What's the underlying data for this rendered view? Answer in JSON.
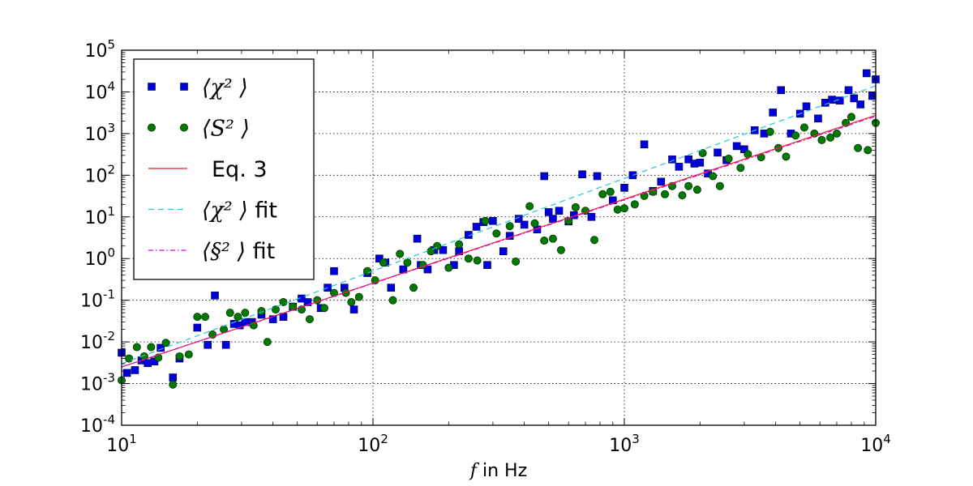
{
  "chart_data": {
    "type": "scatter",
    "xscale": "log",
    "yscale": "log",
    "xlim": [
      10,
      10000
    ],
    "ylim": [
      0.0001,
      100000
    ],
    "xlabel": {
      "math": "f",
      "text": " in Hz"
    },
    "grid": true,
    "legend_position": "top-left",
    "x_ticks": [
      {
        "base": "10",
        "exp": "1"
      },
      {
        "base": "10",
        "exp": "2"
      },
      {
        "base": "10",
        "exp": "3"
      },
      {
        "base": "10",
        "exp": "4"
      }
    ],
    "y_ticks": [
      {
        "base": "10",
        "exp": "-4"
      },
      {
        "base": "10",
        "exp": "-3"
      },
      {
        "base": "10",
        "exp": "-2"
      },
      {
        "base": "10",
        "exp": "-1"
      },
      {
        "base": "10",
        "exp": "0"
      },
      {
        "base": "10",
        "exp": "1"
      },
      {
        "base": "10",
        "exp": "2"
      },
      {
        "base": "10",
        "exp": "3"
      },
      {
        "base": "10",
        "exp": "4"
      },
      {
        "base": "10",
        "exp": "5"
      }
    ],
    "legend": [
      {
        "id": "chi2",
        "label": "⟨χ² ⟩",
        "suffix": ""
      },
      {
        "id": "s2",
        "label": "⟨S² ⟩",
        "suffix": ""
      },
      {
        "id": "eq3",
        "label": "",
        "suffix": "Eq. 3"
      },
      {
        "id": "chi2fit",
        "label": "⟨χ² ⟩",
        "suffix": " fit"
      },
      {
        "id": "s2fit",
        "label": "⟨§² ⟩",
        "suffix": " fit"
      }
    ],
    "series": [
      {
        "id": "chi2",
        "kind": "markers",
        "marker": "square",
        "color": "#0000dd",
        "edge": "#000044",
        "points": [
          [
            10,
            0.0055
          ],
          [
            10.5,
            0.0018
          ],
          [
            11.3,
            0.0021
          ],
          [
            12,
            0.0036
          ],
          [
            12.7,
            0.0031
          ],
          [
            13.5,
            0.0034
          ],
          [
            14.3,
            0.0072
          ],
          [
            16,
            0.0014
          ],
          [
            17,
            0.004
          ],
          [
            20,
            0.022
          ],
          [
            22,
            0.0085
          ],
          [
            23.5,
            0.13
          ],
          [
            26,
            0.0085
          ],
          [
            28,
            0.027
          ],
          [
            29.5,
            0.025
          ],
          [
            31,
            0.03
          ],
          [
            33,
            0.03
          ],
          [
            36,
            0.045
          ],
          [
            40,
            0.035
          ],
          [
            44,
            0.04
          ],
          [
            48,
            0.07
          ],
          [
            52,
            0.11
          ],
          [
            55,
            0.09
          ],
          [
            62,
            0.065
          ],
          [
            66,
            0.2
          ],
          [
            70,
            0.5
          ],
          [
            77,
            0.2
          ],
          [
            84,
            0.06
          ],
          [
            95,
            0.45
          ],
          [
            106,
            1.0
          ],
          [
            112,
            0.8
          ],
          [
            118,
            0.2
          ],
          [
            132,
            0.55
          ],
          [
            150,
            3.0
          ],
          [
            155,
            0.7
          ],
          [
            165,
            0.55
          ],
          [
            175,
            1.6
          ],
          [
            190,
            1.6
          ],
          [
            210,
            0.7
          ],
          [
            220,
            1.5
          ],
          [
            240,
            3.7
          ],
          [
            258,
            5.8
          ],
          [
            275,
            7.5
          ],
          [
            285,
            0.7
          ],
          [
            300,
            8.0
          ],
          [
            330,
            1.5
          ],
          [
            350,
            3.5
          ],
          [
            380,
            9.0
          ],
          [
            400,
            6.5
          ],
          [
            450,
            5.0
          ],
          [
            480,
            95
          ],
          [
            500,
            13
          ],
          [
            520,
            9.0
          ],
          [
            550,
            14
          ],
          [
            600,
            7.8
          ],
          [
            630,
            11
          ],
          [
            680,
            105
          ],
          [
            740,
            10
          ],
          [
            780,
            95
          ],
          [
            900,
            25
          ],
          [
            1000,
            50
          ],
          [
            1080,
            100
          ],
          [
            1200,
            550
          ],
          [
            1300,
            42
          ],
          [
            1400,
            70
          ],
          [
            1550,
            240
          ],
          [
            1650,
            160
          ],
          [
            1800,
            240
          ],
          [
            1900,
            190
          ],
          [
            2000,
            200
          ],
          [
            2150,
            110
          ],
          [
            2350,
            350
          ],
          [
            2550,
            230
          ],
          [
            2800,
            500
          ],
          [
            3000,
            420
          ],
          [
            3300,
            1200
          ],
          [
            3600,
            1000
          ],
          [
            3900,
            3200
          ],
          [
            4200,
            11000
          ],
          [
            4600,
            1000
          ],
          [
            5000,
            3000
          ],
          [
            5300,
            4500
          ],
          [
            5900,
            2300
          ],
          [
            6300,
            5500
          ],
          [
            6700,
            6500
          ],
          [
            7200,
            6200
          ],
          [
            7800,
            11000
          ],
          [
            8200,
            7000
          ],
          [
            8700,
            5000
          ],
          [
            9200,
            28000
          ],
          [
            9700,
            8000
          ],
          [
            10000,
            20000
          ]
        ]
      },
      {
        "id": "s2",
        "kind": "markers",
        "marker": "circle",
        "color": "#007a00",
        "edge": "#003300",
        "points": [
          [
            10,
            0.0012
          ],
          [
            10.7,
            0.004
          ],
          [
            11.5,
            0.0075
          ],
          [
            12.3,
            0.0045
          ],
          [
            13.1,
            0.0075
          ],
          [
            14,
            0.0042
          ],
          [
            15,
            0.0095
          ],
          [
            16,
            0.00095
          ],
          [
            17,
            0.0045
          ],
          [
            18.5,
            0.005
          ],
          [
            20,
            0.04
          ],
          [
            21.5,
            0.04
          ],
          [
            23,
            0.015
          ],
          [
            25.5,
            0.02
          ],
          [
            27,
            0.05
          ],
          [
            29,
            0.04
          ],
          [
            31,
            0.05
          ],
          [
            33.5,
            0.025
          ],
          [
            36,
            0.055
          ],
          [
            38,
            0.01
          ],
          [
            41,
            0.06
          ],
          [
            44,
            0.09
          ],
          [
            48,
            0.07
          ],
          [
            52,
            0.06
          ],
          [
            56,
            0.035
          ],
          [
            60,
            0.1
          ],
          [
            64,
            0.065
          ],
          [
            70,
            0.15
          ],
          [
            78,
            0.15
          ],
          [
            82,
            0.09
          ],
          [
            88,
            0.12
          ],
          [
            95,
            0.5
          ],
          [
            102,
            0.3
          ],
          [
            110,
            0.8
          ],
          [
            120,
            0.1
          ],
          [
            128,
            1.3
          ],
          [
            137,
            0.8
          ],
          [
            145,
            0.2
          ],
          [
            158,
            0.7
          ],
          [
            170,
            1.5
          ],
          [
            180,
            2.0
          ],
          [
            200,
            0.6
          ],
          [
            220,
            2.2
          ],
          [
            240,
            1.0
          ],
          [
            260,
            0.9
          ],
          [
            280,
            8.0
          ],
          [
            310,
            4.0
          ],
          [
            350,
            6.0
          ],
          [
            370,
            0.85
          ],
          [
            420,
            18
          ],
          [
            440,
            7.0
          ],
          [
            480,
            2.7
          ],
          [
            520,
            3.0
          ],
          [
            560,
            1.6
          ],
          [
            600,
            8.0
          ],
          [
            640,
            17
          ],
          [
            700,
            14
          ],
          [
            760,
            2.8
          ],
          [
            820,
            35
          ],
          [
            880,
            40
          ],
          [
            940,
            15
          ],
          [
            1000,
            16
          ],
          [
            1100,
            20
          ],
          [
            1200,
            32
          ],
          [
            1300,
            40
          ],
          [
            1450,
            35
          ],
          [
            1550,
            55
          ],
          [
            1700,
            33
          ],
          [
            1800,
            55
          ],
          [
            1950,
            45
          ],
          [
            2050,
            340
          ],
          [
            2250,
            95
          ],
          [
            2400,
            55
          ],
          [
            2600,
            250
          ],
          [
            2900,
            150
          ],
          [
            3100,
            320
          ],
          [
            3500,
            270
          ],
          [
            3800,
            1100
          ],
          [
            4100,
            450
          ],
          [
            4400,
            280
          ],
          [
            4800,
            900
          ],
          [
            5200,
            1400
          ],
          [
            5700,
            1000
          ],
          [
            6100,
            700
          ],
          [
            6600,
            800
          ],
          [
            7000,
            1000
          ],
          [
            7600,
            1800
          ],
          [
            8000,
            2500
          ],
          [
            8500,
            450
          ],
          [
            9300,
            400
          ],
          [
            10000,
            1800
          ]
        ]
      },
      {
        "id": "eq3",
        "kind": "line",
        "style": "solid",
        "color": "#ee2222",
        "points": [
          [
            10,
            0.0025
          ],
          [
            10000,
            2750
          ]
        ]
      },
      {
        "id": "chi2fit",
        "kind": "line",
        "style": "dashed",
        "color": "#22c6d6",
        "points": [
          [
            10,
            0.003
          ],
          [
            10000,
            14000
          ]
        ]
      },
      {
        "id": "s2fit",
        "kind": "line",
        "style": "dashdot",
        "color": "#dd00dd",
        "points": [
          [
            10,
            0.0025
          ],
          [
            10000,
            2600
          ]
        ]
      }
    ]
  }
}
